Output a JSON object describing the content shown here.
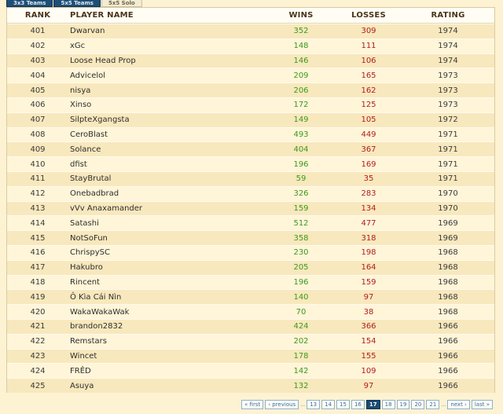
{
  "tabs": [
    "3x3 Teams",
    "5x5 Teams",
    "5x5 Solo"
  ],
  "columns": {
    "rank": "RANK",
    "player": "PLAYER NAME",
    "wins": "WINS",
    "losses": "LOSSES",
    "rating": "RATING"
  },
  "rows": [
    {
      "rank": "401",
      "name": "Dwarvan",
      "wins": "352",
      "losses": "309",
      "rating": "1974"
    },
    {
      "rank": "402",
      "name": "xGc",
      "wins": "148",
      "losses": "111",
      "rating": "1974"
    },
    {
      "rank": "403",
      "name": "Loose Head Prop",
      "wins": "146",
      "losses": "106",
      "rating": "1974"
    },
    {
      "rank": "404",
      "name": "Advicelol",
      "wins": "209",
      "losses": "165",
      "rating": "1973"
    },
    {
      "rank": "405",
      "name": "nisya",
      "wins": "206",
      "losses": "162",
      "rating": "1973"
    },
    {
      "rank": "406",
      "name": "Xinso",
      "wins": "172",
      "losses": "125",
      "rating": "1973"
    },
    {
      "rank": "407",
      "name": "SilpteXgangsta",
      "wins": "149",
      "losses": "105",
      "rating": "1972"
    },
    {
      "rank": "408",
      "name": "CeroBlast",
      "wins": "493",
      "losses": "449",
      "rating": "1971"
    },
    {
      "rank": "409",
      "name": "Solance",
      "wins": "404",
      "losses": "367",
      "rating": "1971"
    },
    {
      "rank": "410",
      "name": "dfist",
      "wins": "196",
      "losses": "169",
      "rating": "1971"
    },
    {
      "rank": "411",
      "name": "StayBrutal",
      "wins": "59",
      "losses": "35",
      "rating": "1971"
    },
    {
      "rank": "412",
      "name": "Onebadbrad",
      "wins": "326",
      "losses": "283",
      "rating": "1970"
    },
    {
      "rank": "413",
      "name": "vVv Anaxamander",
      "wins": "159",
      "losses": "134",
      "rating": "1970"
    },
    {
      "rank": "414",
      "name": "Satashi",
      "wins": "512",
      "losses": "477",
      "rating": "1969"
    },
    {
      "rank": "415",
      "name": "NotSoFun",
      "wins": "358",
      "losses": "318",
      "rating": "1969"
    },
    {
      "rank": "416",
      "name": "ChrispySC",
      "wins": "230",
      "losses": "198",
      "rating": "1968"
    },
    {
      "rank": "417",
      "name": "Hakubro",
      "wins": "205",
      "losses": "164",
      "rating": "1968"
    },
    {
      "rank": "418",
      "name": "Rincent",
      "wins": "196",
      "losses": "159",
      "rating": "1968"
    },
    {
      "rank": "419",
      "name": "Ô Kìa Cái Nìn",
      "wins": "140",
      "losses": "97",
      "rating": "1968"
    },
    {
      "rank": "420",
      "name": "WakaWakaWak",
      "wins": "70",
      "losses": "38",
      "rating": "1968"
    },
    {
      "rank": "421",
      "name": "brandon2832",
      "wins": "424",
      "losses": "366",
      "rating": "1966"
    },
    {
      "rank": "422",
      "name": "Remstars",
      "wins": "202",
      "losses": "154",
      "rating": "1966"
    },
    {
      "rank": "423",
      "name": "Wincet",
      "wins": "178",
      "losses": "155",
      "rating": "1966"
    },
    {
      "rank": "424",
      "name": "FRÊD",
      "wins": "142",
      "losses": "109",
      "rating": "1966"
    },
    {
      "rank": "425",
      "name": "Asuya",
      "wins": "132",
      "losses": "97",
      "rating": "1966"
    }
  ],
  "pagination": {
    "first": "« first",
    "previous": "‹ previous",
    "gap": "...",
    "pages": [
      "13",
      "14",
      "15",
      "16",
      "17",
      "18",
      "19",
      "20",
      "21"
    ],
    "current": "17",
    "next": "next ›",
    "last": "last »"
  },
  "colors": {
    "wins": "#3c9a1d",
    "losses": "#b11e1e",
    "tab_blue": "#1e4f77",
    "row_odd": "#f8e8bd",
    "row_even": "#fff5d8"
  }
}
